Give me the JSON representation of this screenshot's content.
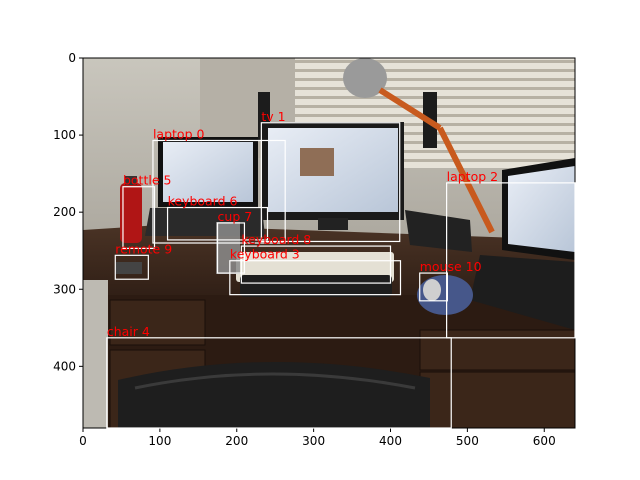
{
  "axes": {
    "x_ticks": [
      "0",
      "100",
      "200",
      "300",
      "400",
      "500",
      "600"
    ],
    "y_ticks": [
      "0",
      "100",
      "200",
      "300",
      "400"
    ],
    "xlim": [
      0,
      640
    ],
    "ylim": [
      480,
      0
    ]
  },
  "colors": {
    "box": "#ffffff",
    "label": "#ff0000"
  },
  "detections": [
    {
      "label": "tv 1",
      "x1": 232,
      "y1": 84,
      "x2": 412,
      "y2": 238
    },
    {
      "label": "laptop 0",
      "x1": 91,
      "y1": 107,
      "x2": 263,
      "y2": 240
    },
    {
      "label": "laptop 2",
      "x1": 473,
      "y1": 162,
      "x2": 640,
      "y2": 363
    },
    {
      "label": "bottle 5",
      "x1": 52,
      "y1": 167,
      "x2": 93,
      "y2": 247
    },
    {
      "label": "keyboard 6",
      "x1": 110,
      "y1": 194,
      "x2": 240,
      "y2": 236
    },
    {
      "label": "cup 7",
      "x1": 175,
      "y1": 214,
      "x2": 210,
      "y2": 279
    },
    {
      "label": "remote 9",
      "x1": 42,
      "y1": 256,
      "x2": 85,
      "y2": 287
    },
    {
      "label": "keyboard 8",
      "x1": 206,
      "y1": 244,
      "x2": 400,
      "y2": 292
    },
    {
      "label": "keyboard 3",
      "x1": 191,
      "y1": 263,
      "x2": 413,
      "y2": 307
    },
    {
      "label": "mouse 10",
      "x1": 438,
      "y1": 279,
      "x2": 474,
      "y2": 315
    },
    {
      "label": "chair 4",
      "x1": 31,
      "y1": 363,
      "x2": 479,
      "y2": 480
    }
  ]
}
